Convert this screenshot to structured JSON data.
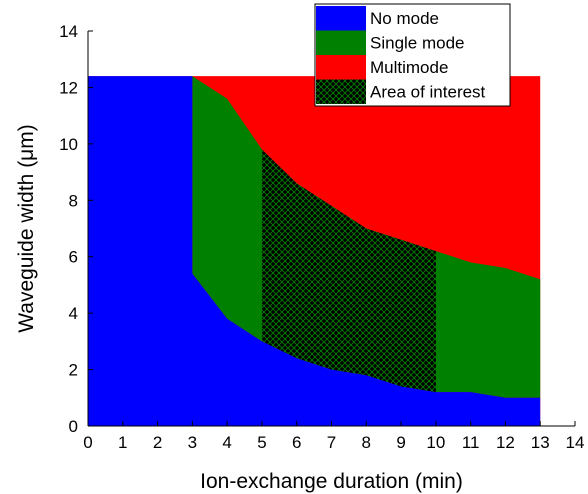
{
  "chart_data": {
    "type": "area",
    "xlabel": "Ion-exchange duration (min)",
    "ylabel": "Waveguide width (μm)",
    "xlim": [
      0,
      14
    ],
    "ylim": [
      0,
      14
    ],
    "xticks": [
      0,
      1,
      2,
      3,
      4,
      5,
      6,
      7,
      8,
      9,
      10,
      11,
      12,
      13,
      14
    ],
    "yticks": [
      0,
      2,
      4,
      6,
      8,
      10,
      12,
      14
    ],
    "plot_top_width": 12.4,
    "x_start": 0,
    "x_end": 13,
    "colors": {
      "no_mode": "#0000ff",
      "single_mode": "#008000",
      "multimode": "#ff0000",
      "area_of_interest": "#000000",
      "hatch": "#008000"
    },
    "series": [
      {
        "name": "No mode",
        "x": [
          3,
          4,
          5,
          6,
          7,
          8,
          9,
          10,
          11,
          12,
          13
        ],
        "values": [
          5.4,
          3.8,
          3.0,
          2.4,
          2.0,
          1.8,
          1.4,
          1.2,
          1.2,
          1.0,
          1.0
        ]
      },
      {
        "name": "Single mode",
        "x": [
          3,
          4,
          5,
          6,
          7,
          8,
          9,
          10,
          11,
          12,
          13
        ],
        "values": [
          12.4,
          11.6,
          9.8,
          8.6,
          7.8,
          7.0,
          6.6,
          6.2,
          5.8,
          5.6,
          5.2
        ]
      },
      {
        "name": "Multimode",
        "x": [
          3,
          13
        ],
        "values": [
          12.4,
          12.4
        ]
      }
    ],
    "area_of_interest": {
      "name": "Area of interest",
      "x_range": [
        5,
        10
      ]
    },
    "legend": {
      "placement": "top-right",
      "entries": [
        "No mode",
        "Single mode",
        "Multimode",
        "Area of interest"
      ]
    }
  }
}
